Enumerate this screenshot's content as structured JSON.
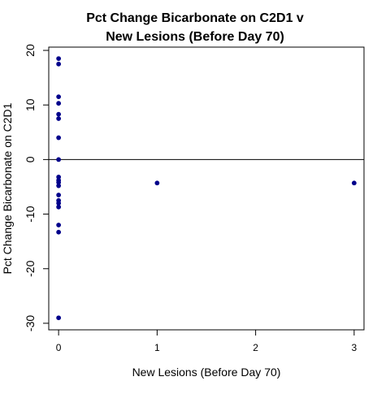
{
  "chart_data": {
    "type": "scatter",
    "title_lines": [
      "Pct Change Bicarbonate on C2D1 v",
      "New Lesions (Before Day 70)"
    ],
    "xlabel": "New Lesions (Before Day 70)",
    "ylabel": "Pct Change Bicarbonate on C2D1",
    "xlim": [
      -0.1,
      3.1
    ],
    "ylim": [
      -31.2,
      20.6
    ],
    "xticks": [
      0,
      1,
      2,
      3
    ],
    "yticks": [
      -30,
      -20,
      -10,
      0,
      10,
      20
    ],
    "reference_line_y": 0,
    "point_color": "#00008B",
    "points": [
      {
        "x": 0,
        "y": 18.5
      },
      {
        "x": 0,
        "y": 17.5
      },
      {
        "x": 0,
        "y": 11.5
      },
      {
        "x": 0,
        "y": 10.3
      },
      {
        "x": 0,
        "y": 8.3
      },
      {
        "x": 0,
        "y": 7.5
      },
      {
        "x": 0,
        "y": 4.0
      },
      {
        "x": 0,
        "y": 0.0
      },
      {
        "x": 0,
        "y": -3.2
      },
      {
        "x": 0,
        "y": -3.8
      },
      {
        "x": 0,
        "y": -4.2
      },
      {
        "x": 0,
        "y": -4.8
      },
      {
        "x": 0,
        "y": -6.5
      },
      {
        "x": 0,
        "y": -7.5
      },
      {
        "x": 0,
        "y": -8.0
      },
      {
        "x": 0,
        "y": -8.7
      },
      {
        "x": 0,
        "y": -12.0
      },
      {
        "x": 0,
        "y": -13.3
      },
      {
        "x": 0,
        "y": -29.0
      },
      {
        "x": 1,
        "y": -4.3
      },
      {
        "x": 3,
        "y": -4.3
      }
    ]
  }
}
